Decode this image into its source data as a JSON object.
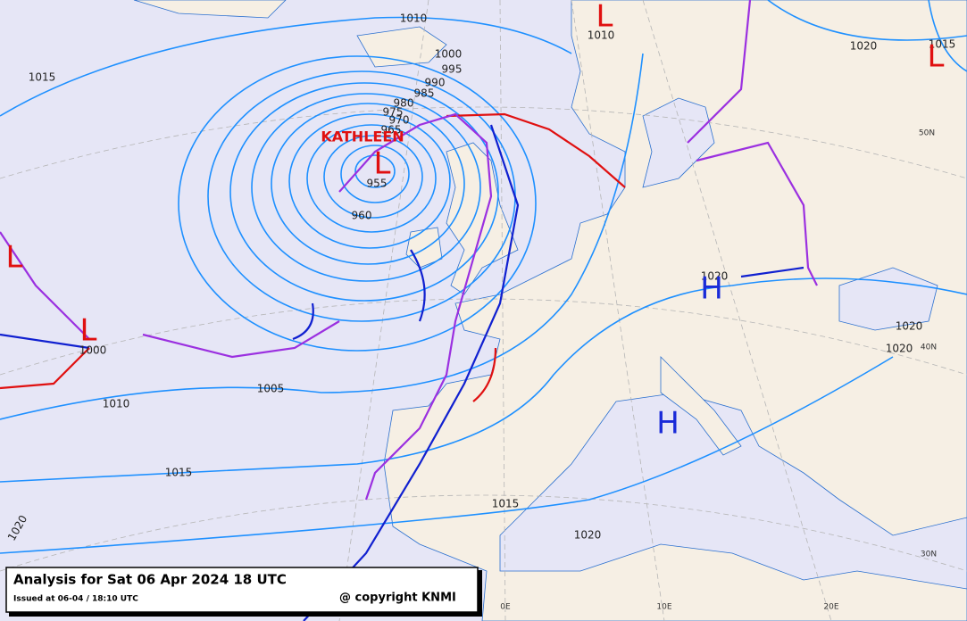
{
  "title": "Analysis for Sat 06 Apr 2024 18 UTC",
  "issued": "Issued at 06-04 / 18:10 UTC",
  "copyright": "@ copyright KNMI",
  "storm_name": "KATHLEEN",
  "isobar_labels": [
    "1010",
    "1000",
    "995",
    "990",
    "985",
    "980",
    "975",
    "970",
    "965",
    "955",
    "960",
    "1015",
    "1010",
    "1020",
    "1015",
    "1005",
    "1010",
    "1000",
    "1015",
    "1020",
    "1015",
    "1020",
    "1020",
    "1020",
    "1020"
  ],
  "pressure_centers": [
    "L",
    "L",
    "L",
    "L",
    "L",
    "H",
    "H"
  ],
  "graticule_labels": [
    "50N",
    "40N",
    "30N",
    "0E",
    "10E",
    "20E"
  ]
}
